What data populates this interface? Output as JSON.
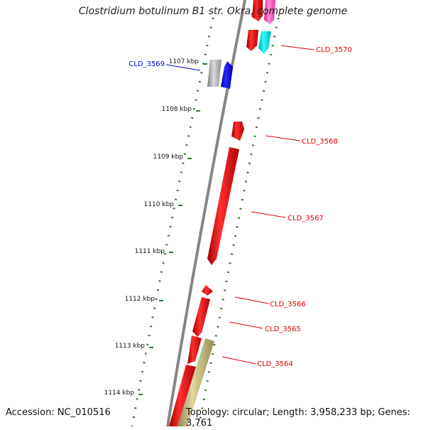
{
  "title": "Clostridium botulinum B1 str. Okra, complete genome",
  "accession_text": "Accession: NC_010516",
  "summary_text": "Topology: circular; Length: 3,958,233 bp; Genes: 3,761",
  "colors": {
    "backbone": "#888888",
    "tick_dots": "#2e7d32",
    "label_red": "#dd0000",
    "label_blue": "#0000cc",
    "gene_red": "#ff0000",
    "gene_blue": "#0000ff",
    "gene_grey": "#b0b0b0",
    "gene_cyan": "#00e5ee",
    "gene_pink": "#ff66cc",
    "gene_olive": "#b5ae72"
  },
  "kbp_ticks": [
    "1107 kbp",
    "1108 kbp",
    "1109 kbp",
    "1110 kbp",
    "1111 kbp",
    "1112 kbp",
    "1113 kbp",
    "1114 kbp"
  ],
  "gene_labels": [
    {
      "name": "CLD_3570",
      "color": "label_red"
    },
    {
      "name": "CLD_3569",
      "color": "label_blue"
    },
    {
      "name": "CLD_3568",
      "color": "label_red"
    },
    {
      "name": "CLD_3567",
      "color": "label_red"
    },
    {
      "name": "CLD_3566",
      "color": "label_red"
    },
    {
      "name": "CLD_3565",
      "color": "label_red"
    },
    {
      "name": "CLD_3564",
      "color": "label_red"
    }
  ],
  "genes": [
    {
      "id": "gene-cld-3570-top",
      "color": "gene_red"
    },
    {
      "id": "gene-pink-top",
      "color": "gene_pink"
    },
    {
      "id": "gene-cld-3570",
      "color": "gene_red"
    },
    {
      "id": "gene-cyan",
      "color": "gene_cyan"
    },
    {
      "id": "gene-cld-3569-grey",
      "color": "gene_grey"
    },
    {
      "id": "gene-cld-3569-blue",
      "color": "gene_blue"
    },
    {
      "id": "gene-cld-3568",
      "color": "gene_red"
    },
    {
      "id": "gene-cld-3567",
      "color": "gene_red"
    },
    {
      "id": "gene-cld-3566-small",
      "color": "gene_red"
    },
    {
      "id": "gene-cld-3566",
      "color": "gene_red"
    },
    {
      "id": "gene-cld-3565",
      "color": "gene_red"
    },
    {
      "id": "gene-cld-3564-olive",
      "color": "gene_olive"
    },
    {
      "id": "gene-bottom-red",
      "color": "gene_red"
    }
  ]
}
